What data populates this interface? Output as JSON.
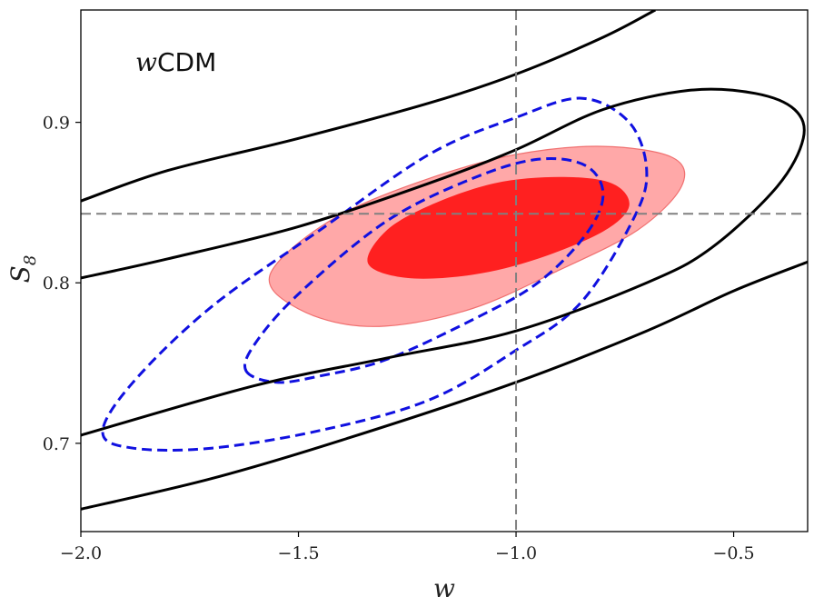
{
  "chart_data": {
    "type": "scatter",
    "subtype": "confidence-contours",
    "annotation": {
      "italic_prefix": "w",
      "text": "CDM"
    },
    "xlabel": "w",
    "ylabel": {
      "base": "S",
      "subscript": "8"
    },
    "xlim": [
      -2.0,
      -0.33
    ],
    "ylim": [
      0.645,
      0.97
    ],
    "xticks": [
      {
        "value": -2.0,
        "label": "−2.0"
      },
      {
        "value": -1.5,
        "label": "−1.5"
      },
      {
        "value": -1.0,
        "label": "−1.0"
      },
      {
        "value": -0.5,
        "label": "−0.5"
      }
    ],
    "yticks": [
      {
        "value": 0.7,
        "label": "0.7"
      },
      {
        "value": 0.8,
        "label": "0.8"
      },
      {
        "value": 0.9,
        "label": "0.9"
      }
    ],
    "grid": false,
    "reference_lines": {
      "x": -1.0,
      "y": 0.843,
      "style": "dashed",
      "color": "#808080"
    },
    "series": [
      {
        "style": "filled",
        "color": "#ff2020",
        "levels": [
          {
            "sigma": 2,
            "color": "#ffa8a8",
            "stroke": "#f07070",
            "points": [
              [
                -1.56,
                0.796
              ],
              [
                -1.45,
                0.778
              ],
              [
                -1.3,
                0.773
              ],
              [
                -1.1,
                0.784
              ],
              [
                -0.9,
                0.808
              ],
              [
                -0.72,
                0.833
              ],
              [
                -0.62,
                0.86
              ],
              [
                -0.64,
                0.878
              ],
              [
                -0.8,
                0.885
              ],
              [
                -1.0,
                0.88
              ],
              [
                -1.2,
                0.865
              ],
              [
                -1.4,
                0.843
              ],
              [
                -1.54,
                0.815
              ]
            ]
          },
          {
            "sigma": 1,
            "color": "#ff2020",
            "stroke": "none",
            "points": [
              [
                -1.34,
                0.812
              ],
              [
                -1.25,
                0.803
              ],
              [
                -1.1,
                0.805
              ],
              [
                -0.95,
                0.815
              ],
              [
                -0.8,
                0.832
              ],
              [
                -0.74,
                0.848
              ],
              [
                -0.78,
                0.862
              ],
              [
                -0.9,
                0.866
              ],
              [
                -1.05,
                0.862
              ],
              [
                -1.2,
                0.848
              ],
              [
                -1.3,
                0.832
              ]
            ]
          }
        ]
      },
      {
        "style": "dashed",
        "color": "#1010e0",
        "levels": [
          {
            "sigma": 2,
            "points": [
              [
                -1.95,
                0.707
              ],
              [
                -1.88,
                0.697
              ],
              [
                -1.7,
                0.697
              ],
              [
                -1.45,
                0.708
              ],
              [
                -1.2,
                0.727
              ],
              [
                -1.0,
                0.758
              ],
              [
                -0.85,
                0.788
              ],
              [
                -0.73,
                0.84
              ],
              [
                -0.7,
                0.87
              ],
              [
                -0.74,
                0.9
              ],
              [
                -0.85,
                0.915
              ],
              [
                -1.0,
                0.903
              ],
              [
                -1.2,
                0.88
              ],
              [
                -1.45,
                0.833
              ],
              [
                -1.7,
                0.785
              ],
              [
                -1.88,
                0.738
              ]
            ]
          },
          {
            "sigma": 1,
            "points": [
              [
                -1.62,
                0.745
              ],
              [
                -1.55,
                0.738
              ],
              [
                -1.45,
                0.742
              ],
              [
                -1.3,
                0.752
              ],
              [
                -1.1,
                0.777
              ],
              [
                -0.95,
                0.8
              ],
              [
                -0.84,
                0.83
              ],
              [
                -0.8,
                0.855
              ],
              [
                -0.84,
                0.873
              ],
              [
                -0.95,
                0.877
              ],
              [
                -1.1,
                0.865
              ],
              [
                -1.3,
                0.838
              ],
              [
                -1.5,
                0.793
              ],
              [
                -1.6,
                0.762
              ]
            ]
          }
        ]
      },
      {
        "style": "solid",
        "color": "#000000",
        "levels": [
          {
            "sigma": 1,
            "closed": false,
            "points": [
              [
                -2.0,
                0.803
              ],
              [
                -1.8,
                0.815
              ],
              [
                -1.5,
                0.835
              ],
              [
                -1.2,
                0.862
              ],
              [
                -1.0,
                0.883
              ],
              [
                -0.8,
                0.908
              ],
              [
                -0.6,
                0.92
              ],
              [
                -0.45,
                0.918
              ],
              [
                -0.36,
                0.908
              ],
              [
                -0.34,
                0.89
              ],
              [
                -0.4,
                0.86
              ],
              [
                -0.55,
                0.822
              ],
              [
                -0.7,
                0.8
              ],
              [
                -1.0,
                0.77
              ],
              [
                -1.3,
                0.753
              ],
              [
                -1.6,
                0.736
              ],
              [
                -2.0,
                0.705
              ]
            ]
          },
          {
            "sigma": 2,
            "closed": false,
            "part": "upper",
            "points": [
              [
                -2.0,
                0.851
              ],
              [
                -1.8,
                0.87
              ],
              [
                -1.5,
                0.89
              ],
              [
                -1.2,
                0.912
              ],
              [
                -1.0,
                0.93
              ],
              [
                -0.8,
                0.953
              ],
              [
                -0.68,
                0.97
              ]
            ]
          },
          {
            "sigma": 2,
            "closed": false,
            "part": "lower",
            "points": [
              [
                -2.0,
                0.659
              ],
              [
                -1.7,
                0.678
              ],
              [
                -1.4,
                0.702
              ],
              [
                -1.0,
                0.738
              ],
              [
                -0.7,
                0.77
              ],
              [
                -0.5,
                0.795
              ],
              [
                -0.33,
                0.813
              ]
            ]
          }
        ]
      }
    ]
  }
}
